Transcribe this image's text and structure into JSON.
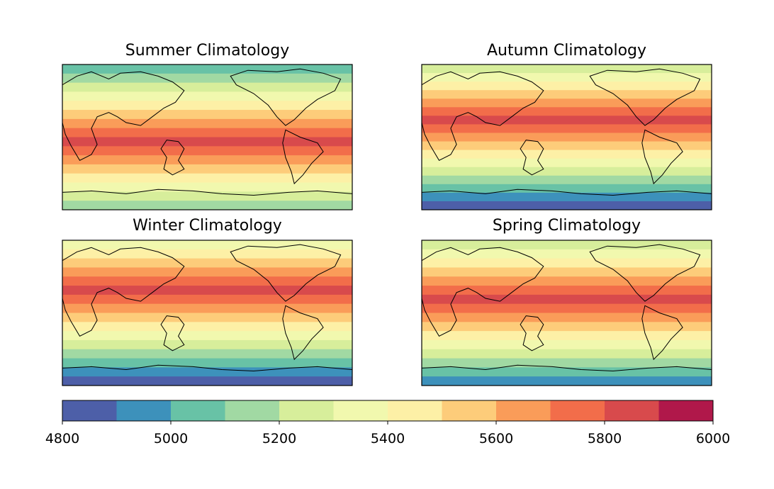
{
  "chart_data": {
    "type": "contour-map",
    "panels": [
      {
        "key": "summer",
        "title": "Summer Climatology",
        "bands": [
          [
            5000,
            5100
          ],
          [
            5100,
            5200
          ],
          [
            5200,
            5300
          ],
          [
            5300,
            5400
          ],
          [
            5400,
            5500
          ],
          [
            5500,
            5600
          ],
          [
            5600,
            5700
          ],
          [
            5700,
            5800
          ],
          [
            5800,
            5900
          ],
          [
            5700,
            5800
          ],
          [
            5600,
            5700
          ],
          [
            5500,
            5600
          ],
          [
            5400,
            5500
          ],
          [
            5300,
            5400
          ],
          [
            5200,
            5300
          ],
          [
            5100,
            5200
          ]
        ]
      },
      {
        "key": "autumn",
        "title": "Autumn Climatology",
        "bands": [
          [
            5200,
            5300
          ],
          [
            5300,
            5400
          ],
          [
            5400,
            5500
          ],
          [
            5500,
            5600
          ],
          [
            5600,
            5700
          ],
          [
            5700,
            5800
          ],
          [
            5800,
            5900
          ],
          [
            5700,
            5800
          ],
          [
            5600,
            5700
          ],
          [
            5500,
            5600
          ],
          [
            5400,
            5500
          ],
          [
            5300,
            5400
          ],
          [
            5200,
            5300
          ],
          [
            5100,
            5200
          ],
          [
            5000,
            5100
          ],
          [
            4900,
            5000
          ],
          [
            4800,
            4900
          ]
        ]
      },
      {
        "key": "winter",
        "title": "Winter Climatology",
        "bands": [
          [
            5300,
            5400
          ],
          [
            5400,
            5500
          ],
          [
            5500,
            5600
          ],
          [
            5600,
            5700
          ],
          [
            5700,
            5800
          ],
          [
            5800,
            5900
          ],
          [
            5700,
            5800
          ],
          [
            5600,
            5700
          ],
          [
            5500,
            5600
          ],
          [
            5400,
            5500
          ],
          [
            5300,
            5400
          ],
          [
            5200,
            5300
          ],
          [
            5100,
            5200
          ],
          [
            5000,
            5100
          ],
          [
            4900,
            5000
          ],
          [
            4800,
            4900
          ]
        ]
      },
      {
        "key": "spring",
        "title": "Spring Climatology",
        "bands": [
          [
            5200,
            5300
          ],
          [
            5300,
            5400
          ],
          [
            5400,
            5500
          ],
          [
            5500,
            5600
          ],
          [
            5600,
            5700
          ],
          [
            5700,
            5800
          ],
          [
            5800,
            5900
          ],
          [
            5700,
            5800
          ],
          [
            5600,
            5700
          ],
          [
            5500,
            5600
          ],
          [
            5400,
            5500
          ],
          [
            5300,
            5400
          ],
          [
            5200,
            5300
          ],
          [
            5100,
            5200
          ],
          [
            5000,
            5100
          ],
          [
            4900,
            5000
          ]
        ]
      }
    ],
    "colorbar": {
      "levels": [
        4800,
        4900,
        5000,
        5100,
        5200,
        5300,
        5400,
        5500,
        5600,
        5700,
        5800,
        5900,
        6000
      ],
      "colors": [
        "#4d5fa8",
        "#3d91bb",
        "#68c2a6",
        "#a1d9a3",
        "#d7ee9b",
        "#f1f8ae",
        "#fdf0a6",
        "#fdcc7a",
        "#fa9c59",
        "#f26d4a",
        "#d84a4c",
        "#b0184a"
      ],
      "tick_labels": [
        "4800",
        "5000",
        "5200",
        "5400",
        "5600",
        "5800",
        "6000"
      ]
    }
  }
}
